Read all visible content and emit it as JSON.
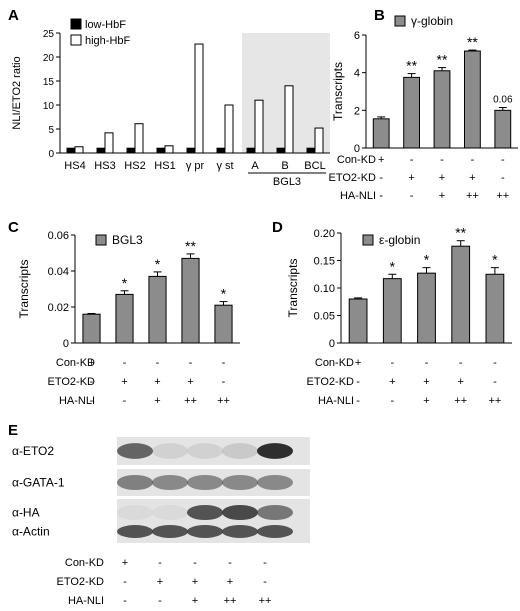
{
  "colors": {
    "dark": "#000000",
    "light": "#ffffff",
    "gray": "#8c8c8c",
    "shade": "#e6e6e6",
    "blot_bg": "#e4e4e4",
    "blot_band": "#2e2e2e"
  },
  "chart_data": [
    {
      "panel": "A",
      "type": "bar",
      "ylabel": "NLI/ETO2 ratio",
      "ylim": [
        0,
        25
      ],
      "yticks": [
        "0",
        "5",
        "10",
        "15",
        "20",
        "25"
      ],
      "categories": [
        "HS4",
        "HS3",
        "HS2",
        "HS1",
        "γ pr",
        "γ st",
        "A",
        "B",
        "BCL"
      ],
      "group_label": "BGL3",
      "series": [
        {
          "name": "low-HbF",
          "values": [
            1,
            1,
            1,
            1,
            1,
            1,
            1,
            1,
            1
          ]
        },
        {
          "name": "high-HbF",
          "values": [
            1.3,
            4.2,
            6.1,
            1.5,
            22.7,
            10.0,
            11.0,
            14.0,
            5.2
          ]
        }
      ]
    },
    {
      "panel": "B",
      "type": "bar",
      "ylabel": "Transcripts",
      "legend": "γ-globin",
      "ylim": [
        0,
        6
      ],
      "yticks": [
        "0",
        "2",
        "4",
        "6"
      ],
      "values": [
        1.55,
        3.75,
        4.1,
        5.15,
        2.0
      ],
      "errors": [
        0.1,
        0.2,
        0.17,
        0.05,
        0.15
      ],
      "annotations": [
        "",
        "**",
        "**",
        "**",
        "0.06"
      ]
    },
    {
      "panel": "C",
      "type": "bar",
      "ylabel": "Transcripts",
      "legend": "BGL3",
      "ylim": [
        0,
        0.06
      ],
      "yticks": [
        "0",
        "0.02",
        "0.04",
        "0.06"
      ],
      "values": [
        0.016,
        0.027,
        0.037,
        0.047,
        0.021
      ],
      "errors": [
        0.0004,
        0.002,
        0.0025,
        0.0025,
        0.002
      ],
      "annotations": [
        "",
        "*",
        "*",
        "**",
        "*"
      ]
    },
    {
      "panel": "D",
      "type": "bar",
      "ylabel": "Transcripts",
      "legend": "ε-globin",
      "ylim": [
        0,
        0.2
      ],
      "yticks": [
        "0",
        "0.05",
        "0.10",
        "0.15",
        "0.20"
      ],
      "values": [
        0.08,
        0.117,
        0.127,
        0.176,
        0.125
      ],
      "errors": [
        0.002,
        0.008,
        0.01,
        0.01,
        0.012
      ],
      "annotations": [
        "",
        "*",
        "*",
        "**",
        "*"
      ]
    }
  ],
  "condition_labels": [
    "Con-KD",
    "ETO2-KD",
    "HA-NLI"
  ],
  "condition_table": [
    [
      "+",
      "-",
      "-",
      "-",
      "-"
    ],
    [
      "-",
      "+",
      "+",
      "+",
      "-"
    ],
    [
      "-",
      "-",
      "+",
      "++",
      "++"
    ]
  ],
  "blot": {
    "panel": "E",
    "rows": [
      "α-ETO2",
      "α-GATA-1",
      "α-HA",
      "α-Actin"
    ]
  }
}
